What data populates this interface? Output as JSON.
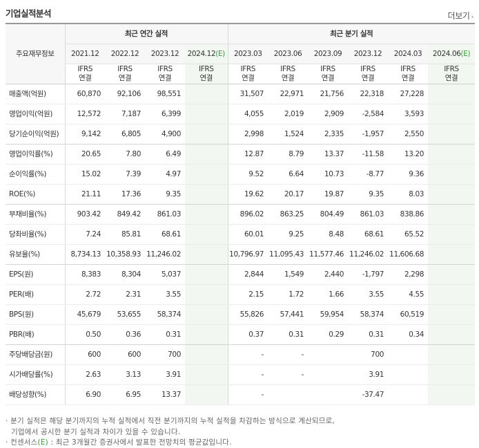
{
  "title": "기업실적분석",
  "more_label": "더보기",
  "corner_label": "주요재무정보",
  "group_annual": "최근 연간 실적",
  "group_quarter": "최근 분기 실적",
  "annual_periods": [
    {
      "label": "2021.12",
      "est": ""
    },
    {
      "label": "2022.12",
      "est": ""
    },
    {
      "label": "2023.12",
      "est": ""
    },
    {
      "label": "2024.12",
      "est": "(E)"
    }
  ],
  "quarter_periods": [
    {
      "label": "2023.03",
      "est": ""
    },
    {
      "label": "2023.06",
      "est": ""
    },
    {
      "label": "2023.09",
      "est": ""
    },
    {
      "label": "2023.12",
      "est": ""
    },
    {
      "label": "2024.03",
      "est": ""
    },
    {
      "label": "2024.06",
      "est": "(E)"
    }
  ],
  "basis_line1": "IFRS",
  "basis_line2": "연결",
  "rows": [
    {
      "label": "매출액(억원)",
      "values": [
        "60,870",
        "92,106",
        "98,551",
        "",
        "31,507",
        "22,971",
        "21,756",
        "22,318",
        "27,228",
        ""
      ]
    },
    {
      "label": "영업이익(억원)",
      "values": [
        "12,572",
        "7,187",
        "6,399",
        "",
        "4,055",
        "2,019",
        "2,909",
        "-2,584",
        "3,593",
        ""
      ]
    },
    {
      "label": "당기순이익(억원)",
      "values": [
        "9,142",
        "6,805",
        "4,900",
        "",
        "2,998",
        "1,524",
        "2,335",
        "-1,957",
        "2,550",
        ""
      ]
    },
    {
      "label": "영업이익률(%)",
      "values": [
        "20.65",
        "7.80",
        "6.49",
        "",
        "12.87",
        "8.79",
        "13.37",
        "-11.58",
        "13.20",
        ""
      ]
    },
    {
      "label": "순이익률(%)",
      "values": [
        "15.02",
        "7.39",
        "4.97",
        "",
        "9.52",
        "6.64",
        "10.73",
        "-8.77",
        "9.36",
        ""
      ]
    },
    {
      "label": "ROE(%)",
      "values": [
        "21.11",
        "17.36",
        "9.35",
        "",
        "19.62",
        "20.17",
        "19.87",
        "9.35",
        "8.03",
        ""
      ]
    },
    {
      "label": "부채비율(%)",
      "values": [
        "903.42",
        "849.42",
        "861.03",
        "",
        "896.02",
        "863.25",
        "804.49",
        "861.03",
        "838.86",
        ""
      ]
    },
    {
      "label": "당좌비율(%)",
      "values": [
        "7.24",
        "85.81",
        "68.61",
        "",
        "60.01",
        "9.25",
        "8.48",
        "68.61",
        "65.52",
        ""
      ]
    },
    {
      "label": "유보율(%)",
      "values": [
        "8,734.13",
        "10,358.93",
        "11,246.02",
        "",
        "10,796.97",
        "11,095.43",
        "11,577.46",
        "11,246.02",
        "11,606.68",
        ""
      ]
    },
    {
      "label": "EPS(원)",
      "values": [
        "8,383",
        "8,304",
        "5,037",
        "",
        "2,844",
        "1,549",
        "2,440",
        "-1,797",
        "2,298",
        ""
      ]
    },
    {
      "label": "PER(배)",
      "values": [
        "2.72",
        "2.31",
        "3.55",
        "",
        "2.15",
        "1.72",
        "1.66",
        "3.55",
        "4.55",
        ""
      ]
    },
    {
      "label": "BPS(원)",
      "values": [
        "45,679",
        "53,655",
        "58,374",
        "",
        "55,826",
        "57,441",
        "59,954",
        "58,374",
        "60,519",
        ""
      ]
    },
    {
      "label": "PBR(배)",
      "values": [
        "0.50",
        "0.36",
        "0.31",
        "",
        "0.37",
        "0.31",
        "0.29",
        "0.31",
        "0.34",
        ""
      ]
    },
    {
      "label": "주당배당금(원)",
      "values": [
        "600",
        "600",
        "700",
        "",
        "-",
        "-",
        "",
        "700",
        "",
        ""
      ]
    },
    {
      "label": "시가배당률(%)",
      "values": [
        "2.63",
        "3.13",
        "3.91",
        "",
        "-",
        "-",
        "",
        "3.91",
        "",
        ""
      ]
    },
    {
      "label": "배당성향(%)",
      "values": [
        "6.90",
        "6.95",
        "13.37",
        "",
        "-",
        "",
        "",
        "-37.47",
        "",
        ""
      ]
    }
  ],
  "notes": {
    "n1_line1": "분기 실적은 해당 분기까지의 누적 실적에서 직전 분기까지의 누적 실적을 차감하는 방식으로 계산되므로,",
    "n1_line2": "기업에서 공시한 분기 실적과 차이가 있을 수 있습니다.",
    "n2_prefix": "컨센서스",
    "n2_e": "(E)",
    "n2_rest": " : 최근 3개월간 증권사에서 발표한 전망치의 평균값입니다."
  },
  "colors": {
    "negative": "#e0221c",
    "basis": "#f0720a",
    "estimate_bg": "#f2f8f1",
    "estimate_text": "#3a9a3a"
  }
}
